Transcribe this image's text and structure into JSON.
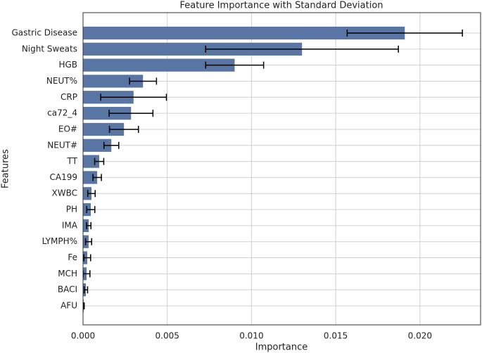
{
  "chart_data": {
    "type": "barh_error",
    "title": "Feature Importance with Standard Deviation",
    "x_label": "Importance",
    "y_label": "Features",
    "categories": [
      "Gastric Disease",
      "Night Sweats",
      "HGB",
      "NEUT%",
      "CRP",
      "ca72_4",
      "EO#",
      "NEUT#",
      "TT",
      "CA199",
      "XWBC",
      "PH",
      "IMA",
      "LYMPH%",
      "Fe",
      "MCH",
      "BACI",
      "AFU"
    ],
    "values": [
      0.0191,
      0.013,
      0.009,
      0.00356,
      0.003,
      0.00285,
      0.00243,
      0.00168,
      0.00096,
      0.00084,
      0.0005,
      0.00046,
      0.00034,
      0.00033,
      0.00025,
      0.00021,
      0.00017,
      4e-05
    ],
    "errors": [
      0.00342,
      0.00572,
      0.00172,
      0.0008,
      0.00195,
      0.0013,
      0.00086,
      0.00044,
      0.00027,
      0.00025,
      0.00022,
      0.00024,
      0.00013,
      0.00018,
      0.0002,
      0.0002,
      0.0001,
      3e-05
    ],
    "color": "#5875a4",
    "error_color": "#000000",
    "xlim": [
      0,
      0.0236
    ],
    "xticks": [
      {
        "value": 0,
        "label": "0.000"
      },
      {
        "value": 0.005,
        "label": "0.005"
      },
      {
        "value": 0.01,
        "label": "0.010"
      },
      {
        "value": 0.015,
        "label": "0.015"
      },
      {
        "value": 0.02,
        "label": "0.020"
      }
    ],
    "grid": true
  }
}
